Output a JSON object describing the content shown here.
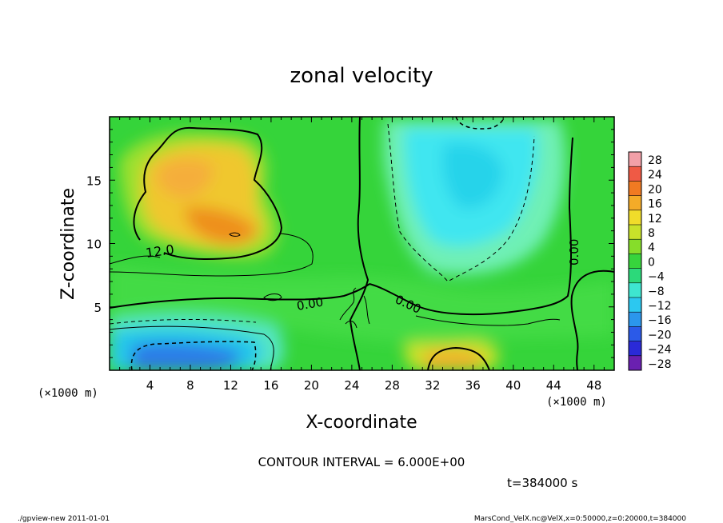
{
  "chart_data": {
    "type": "heatmap",
    "title": "zonal velocity",
    "xlabel": "X-coordinate",
    "ylabel": "Z-coordinate",
    "x_unit": "(×1000 m)",
    "y_unit": "(×1000 m)",
    "xlim": [
      0,
      50
    ],
    "ylim": [
      0,
      20
    ],
    "x_ticks": [
      4,
      8,
      12,
      16,
      20,
      24,
      28,
      32,
      36,
      40,
      44,
      48
    ],
    "y_ticks": [
      5,
      10,
      15
    ],
    "contour_interval_text": "CONTOUR INTERVAL = 6.000E+00",
    "time_text": "t=384000 s",
    "contour_labels": [
      "12.0",
      "0.00",
      "0.00",
      "0.00"
    ],
    "colorbar": {
      "levels": [
        28,
        24,
        20,
        16,
        12,
        8,
        4,
        0,
        -4,
        -8,
        -12,
        -16,
        -20,
        -24,
        -28
      ],
      "labels": [
        "28",
        "24",
        "20",
        "16",
        "12",
        "8",
        "4",
        "0",
        "−4",
        "−8",
        "−12",
        "−16",
        "−20",
        "−24",
        "−28"
      ]
    },
    "features": [
      {
        "name": "positive maximum",
        "x": 12,
        "z": 11,
        "value": 16
      },
      {
        "name": "negative minimum",
        "x": 7,
        "z": 1,
        "value": -16
      },
      {
        "name": "negative region",
        "x": 36,
        "z": 15,
        "value": -9
      },
      {
        "name": "positive maximum",
        "x": 34,
        "z": 1,
        "value": 16
      }
    ]
  },
  "footer": {
    "left": "./gpview-new  2011-01-01",
    "right": "MarsCond_VelX.nc@VelX,x=0:50000,z=0:20000,t=384000"
  }
}
